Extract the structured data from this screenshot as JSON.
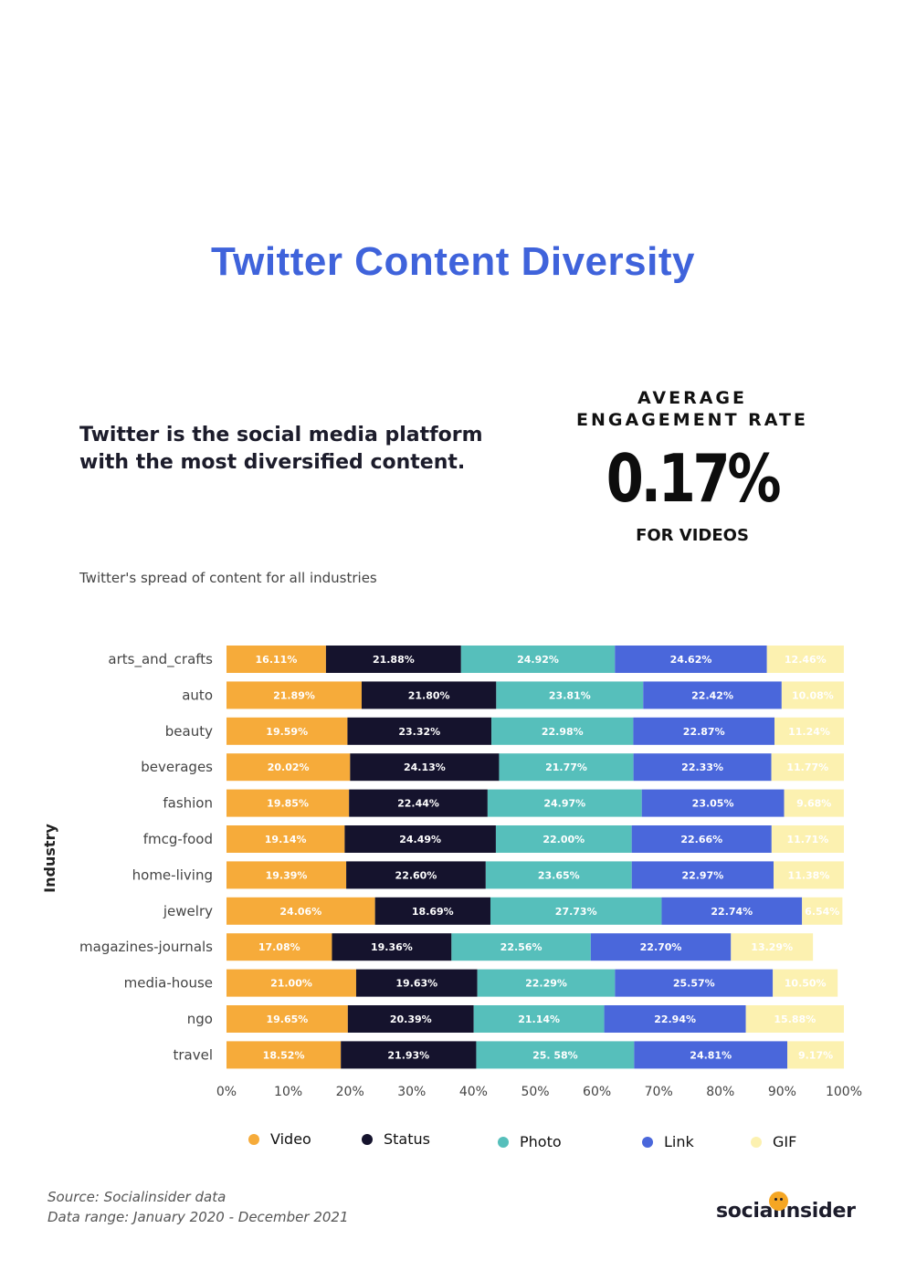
{
  "page": {
    "title": "Twitter Content Diversity",
    "intro_line1": "Twitter is the social media platform",
    "intro_line2": "with the most diversified content.",
    "kpi_label_line1": "AVERAGE",
    "kpi_label_line2": "ENGAGEMENT RATE",
    "kpi_value": "0.17%",
    "kpi_sub": "FOR VIDEOS",
    "chart_subtitle": "Twitter's spread of content for all industries",
    "source_line1": "Source: Socialinsider data",
    "source_line2": "Data range: January 2020 - December 2021",
    "logo": "socialinsider"
  },
  "chart_data": {
    "type": "bar",
    "orientation": "horizontal",
    "stacked": true,
    "title": "Twitter's spread of content for all industries",
    "xlabel": "",
    "ylabel": "Industry",
    "xlim": [
      0,
      100
    ],
    "xticks": [
      "0%",
      "10%",
      "20%",
      "30%",
      "40%",
      "50%",
      "60%",
      "70%",
      "80%",
      "90%",
      "100%"
    ],
    "categories": [
      "arts_and_crafts",
      "auto",
      "beauty",
      "beverages",
      "fashion",
      "fmcg-food",
      "home-living",
      "jewelry",
      "magazines-journals",
      "media-house",
      "ngo",
      "travel"
    ],
    "series": [
      {
        "name": "Video",
        "color": "#f6ab3a",
        "label_color": "#ffffff",
        "values": [
          16.11,
          21.89,
          19.59,
          20.02,
          19.85,
          19.14,
          19.39,
          24.06,
          17.08,
          21.0,
          19.65,
          18.52
        ],
        "labels": [
          "16.11%",
          "21.89%",
          "19.59%",
          "20.02%",
          "19.85%",
          "19.14%",
          "19.39%",
          "24.06%",
          "17.08%",
          "21.00%",
          "19.65%",
          "18.52%"
        ]
      },
      {
        "name": "Status",
        "color": "#15132d",
        "label_color": "#ffffff",
        "values": [
          21.88,
          21.8,
          23.32,
          24.13,
          22.44,
          24.49,
          22.6,
          18.69,
          19.36,
          19.63,
          20.39,
          21.93
        ],
        "labels": [
          "21.88%",
          "21.80%",
          "23.32%",
          "24.13%",
          "22.44%",
          "24.49%",
          "22.60%",
          "18.69%",
          "19.36%",
          "19.63%",
          "20.39%",
          "21.93%"
        ]
      },
      {
        "name": "Photo",
        "color": "#56bfbb",
        "label_color": "#ffffff",
        "values": [
          24.92,
          23.81,
          22.98,
          21.77,
          24.97,
          22.0,
          23.65,
          27.73,
          22.56,
          22.29,
          21.14,
          25.58
        ],
        "labels": [
          "24.92%",
          "23.81%",
          "22.98%",
          "21.77%",
          "24.97%",
          "22.00%",
          "23.65%",
          "27.73%",
          "22.56%",
          "22.29%",
          "21.14%",
          "25. 58%"
        ]
      },
      {
        "name": "Link",
        "color": "#4a67db",
        "label_color": "#ffffff",
        "values": [
          24.62,
          22.42,
          22.87,
          22.33,
          23.05,
          22.66,
          22.97,
          22.74,
          22.7,
          25.57,
          22.94,
          24.81
        ],
        "labels": [
          "24.62%",
          "22.42%",
          "22.87%",
          "22.33%",
          "23.05%",
          "22.66%",
          "22.97%",
          "22.74%",
          "22.70%",
          "25.57%",
          "22.94%",
          "24.81%"
        ]
      },
      {
        "name": "GIF",
        "color": "#fcf1b0",
        "label_color": "#ffffff",
        "values": [
          12.46,
          10.08,
          11.24,
          11.77,
          9.68,
          11.71,
          11.38,
          6.54,
          13.29,
          10.5,
          15.88,
          9.17
        ],
        "labels": [
          "12.46%",
          "10.08%",
          "11.24%",
          "11.77%",
          "9.68%",
          "11.71%",
          "11.38%",
          "6.54%",
          "13.29%",
          "10.50%",
          "15.88%",
          "9.17%"
        ]
      }
    ],
    "legend": "bottom"
  }
}
